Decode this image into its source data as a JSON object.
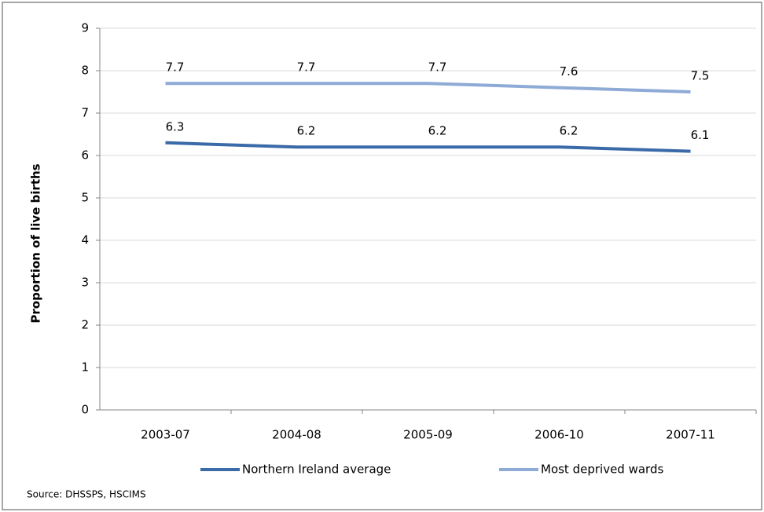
{
  "chart_data": {
    "type": "line",
    "y_label": "Proportion of live births",
    "categories": [
      "2003-07",
      "2004-08",
      "2005-09",
      "2006-10",
      "2007-11"
    ],
    "series": [
      {
        "name": "Northern Ireland average",
        "color": "#3a6aa8",
        "values": [
          6.3,
          6.2,
          6.2,
          6.2,
          6.1
        ]
      },
      {
        "name": "Most deprived wards",
        "color": "#8eaad6",
        "values": [
          7.7,
          7.7,
          7.7,
          7.6,
          7.5
        ]
      }
    ],
    "ylim": [
      0,
      9
    ],
    "yticks": [
      0,
      1,
      2,
      3,
      4,
      5,
      6,
      7,
      8,
      9
    ],
    "grid": true,
    "legend": "bottom",
    "source": "Source: DHSSPS, HSCIMS"
  }
}
